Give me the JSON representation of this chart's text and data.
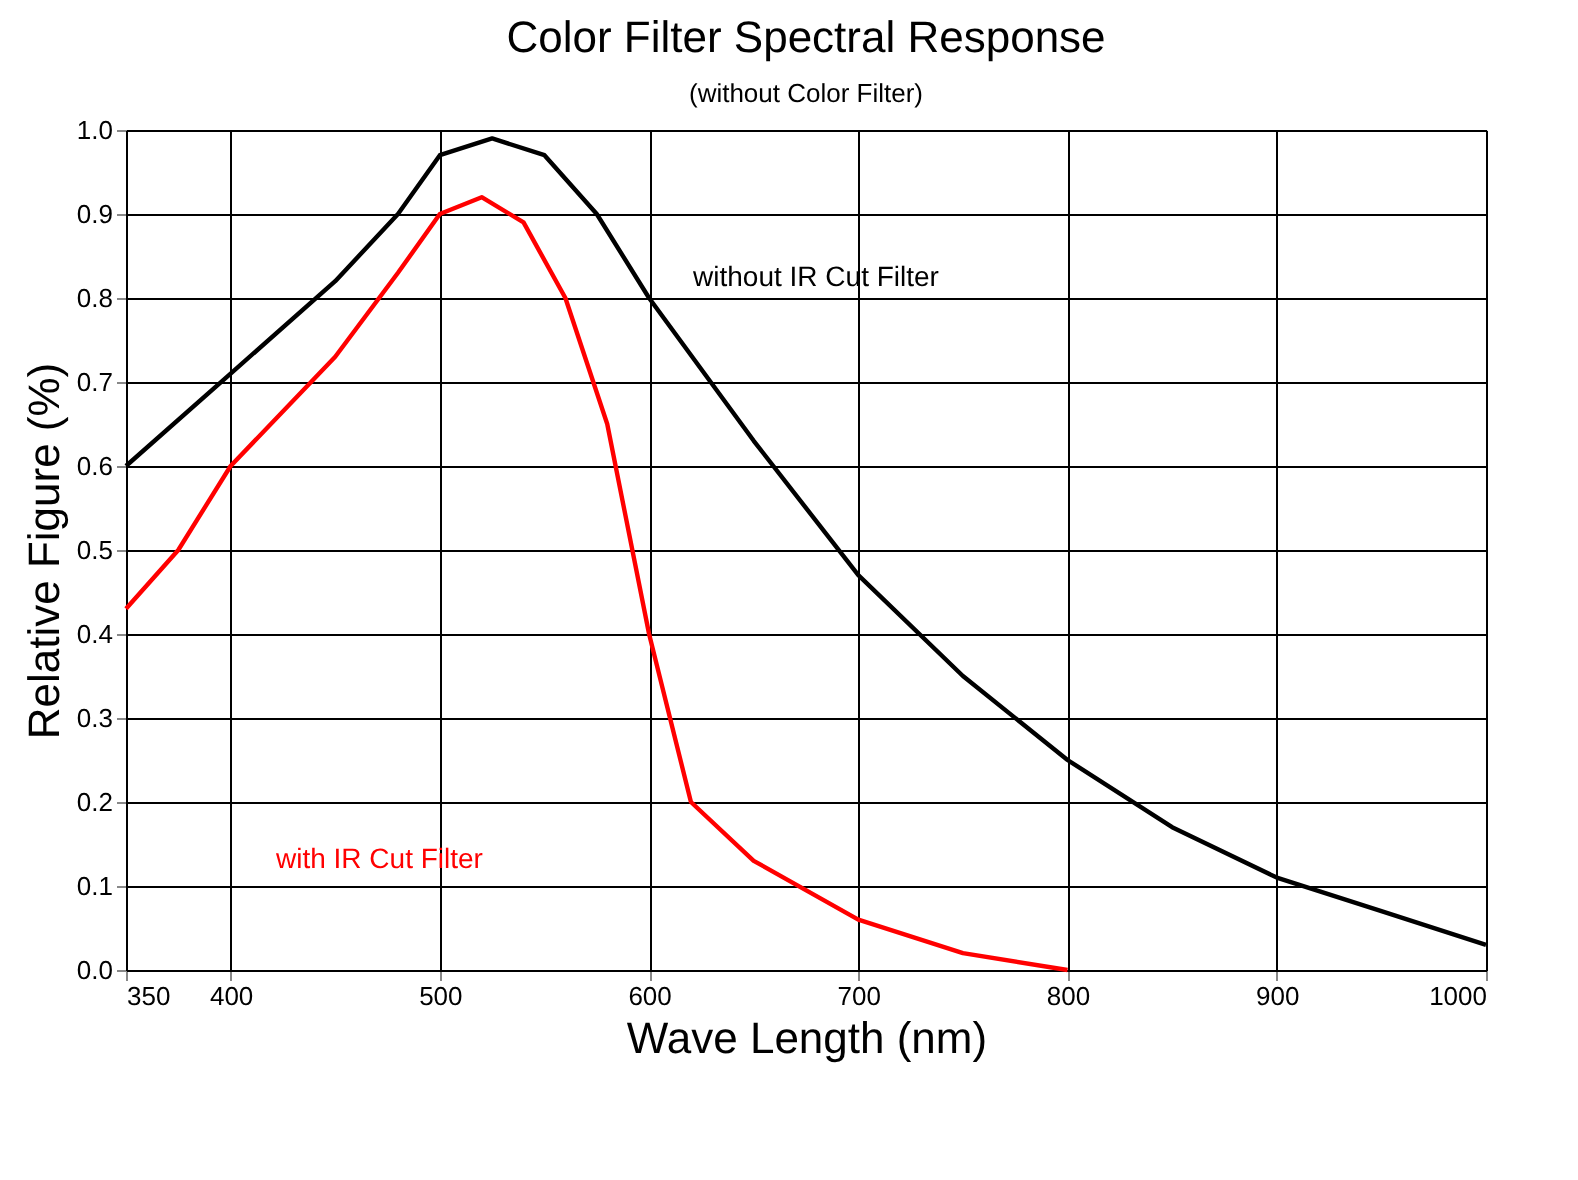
{
  "chart_data": {
    "type": "line",
    "title": "Color Filter Spectral Response",
    "subtitle": "(without Color Filter)",
    "xlabel": "Wave Length (nm)",
    "ylabel": "Relative Figure (%)",
    "series": [
      {
        "name": "without IR Cut Filter",
        "color": "#000000",
        "x": [
          350,
          400,
          450,
          480,
          500,
          525,
          550,
          575,
          600,
          650,
          700,
          750,
          800,
          850,
          900,
          950,
          1000
        ],
        "values": [
          0.6,
          0.71,
          0.82,
          0.9,
          0.97,
          0.99,
          0.97,
          0.9,
          0.8,
          0.63,
          0.47,
          0.35,
          0.25,
          0.17,
          0.11,
          0.07,
          0.03
        ]
      },
      {
        "name": "with IR Cut Filter",
        "color": "#ff0000",
        "x": [
          350,
          375,
          400,
          450,
          480,
          500,
          520,
          540,
          560,
          580,
          600,
          620,
          650,
          700,
          750,
          800
        ],
        "values": [
          0.43,
          0.5,
          0.6,
          0.73,
          0.83,
          0.9,
          0.92,
          0.89,
          0.8,
          0.65,
          0.4,
          0.2,
          0.13,
          0.06,
          0.02,
          0.0
        ]
      }
    ],
    "xlim": [
      350,
      1000
    ],
    "xticks": [
      350,
      400,
      500,
      600,
      700,
      800,
      900,
      1000
    ],
    "ylim": [
      0,
      1
    ],
    "yticks": [
      {
        "value": 0,
        "label": "0.0"
      },
      0.1,
      0.2,
      0.3,
      0.4,
      0.5,
      0.6,
      0.7,
      0.8,
      0.9,
      {
        "value": 1,
        "label": "1.0"
      }
    ],
    "grid": true,
    "marker": "none",
    "line_style": "solid"
  }
}
